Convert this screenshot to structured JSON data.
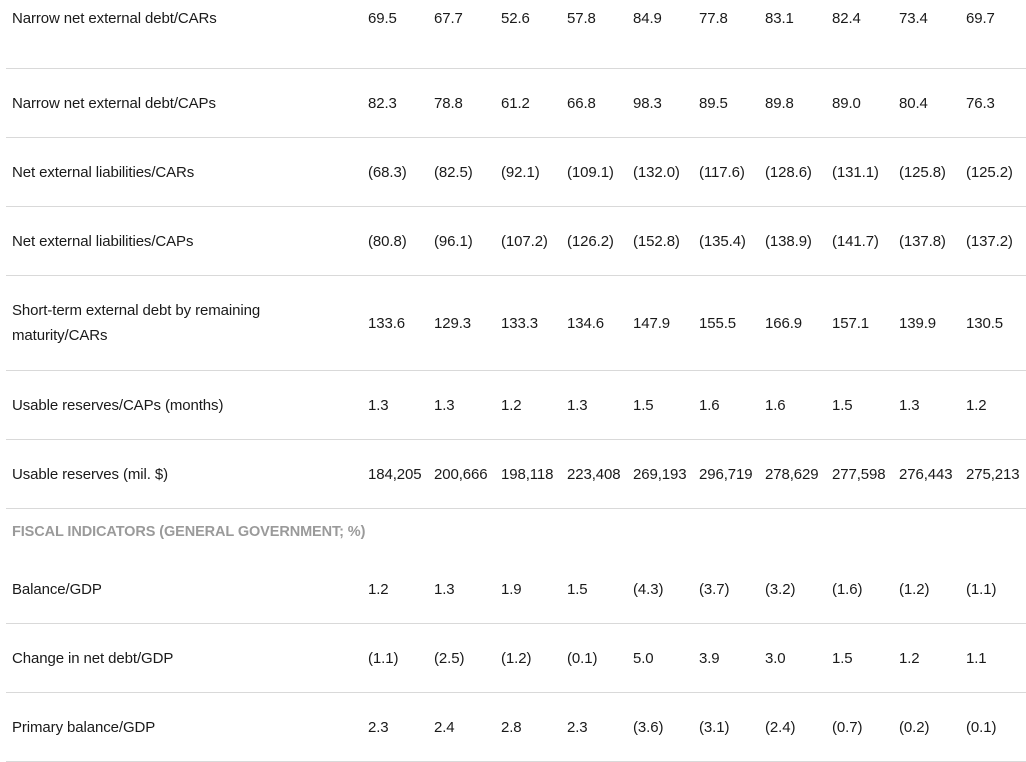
{
  "rows": [
    {
      "label": "Narrow net external debt/CARs",
      "values": [
        "69.5",
        "67.7",
        "52.6",
        "57.8",
        "84.9",
        "77.8",
        "83.1",
        "82.4",
        "73.4",
        "69.7"
      ]
    },
    {
      "label": "Narrow net external debt/CAPs",
      "values": [
        "82.3",
        "78.8",
        "61.2",
        "66.8",
        "98.3",
        "89.5",
        "89.8",
        "89.0",
        "80.4",
        "76.3"
      ]
    },
    {
      "label": "Net external liabilities/CARs",
      "values": [
        "(68.3)",
        "(82.5)",
        "(92.1)",
        "(109.1)",
        "(132.0)",
        "(117.6)",
        "(128.6)",
        "(131.1)",
        "(125.8)",
        "(125.2)"
      ]
    },
    {
      "label": "Net external liabilities/CAPs",
      "values": [
        "(80.8)",
        "(96.1)",
        "(107.2)",
        "(126.2)",
        "(152.8)",
        "(135.4)",
        "(138.9)",
        "(141.7)",
        "(137.8)",
        "(137.2)"
      ]
    },
    {
      "label": "Short-term external debt by remaining maturity/CARs",
      "values": [
        "133.6",
        "129.3",
        "133.3",
        "134.6",
        "147.9",
        "155.5",
        "166.9",
        "157.1",
        "139.9",
        "130.5"
      ]
    },
    {
      "label": "Usable reserves/CAPs (months)",
      "values": [
        "1.3",
        "1.3",
        "1.2",
        "1.3",
        "1.5",
        "1.6",
        "1.6",
        "1.5",
        "1.3",
        "1.2"
      ]
    },
    {
      "label": "Usable reserves (mil. $)",
      "values": [
        "184,205",
        "200,666",
        "198,118",
        "223,408",
        "269,193",
        "296,719",
        "278,629",
        "277,598",
        "276,443",
        "275,213"
      ]
    }
  ],
  "fiscal_section": {
    "title": "FISCAL INDICATORS (GENERAL GOVERNMENT; %)",
    "rows": [
      {
        "label": "Balance/GDP",
        "values": [
          "1.2",
          "1.3",
          "1.9",
          "1.5",
          "(4.3)",
          "(3.7)",
          "(3.2)",
          "(1.6)",
          "(1.2)",
          "(1.1)"
        ]
      },
      {
        "label": "Change in net debt/GDP",
        "values": [
          "(1.1)",
          "(2.5)",
          "(1.2)",
          "(0.1)",
          "5.0",
          "3.9",
          "3.0",
          "1.5",
          "1.2",
          "1.1"
        ]
      },
      {
        "label": "Primary balance/GDP",
        "values": [
          "2.3",
          "2.4",
          "2.8",
          "2.3",
          "(3.6)",
          "(3.1)",
          "(2.4)",
          "(0.7)",
          "(0.2)",
          "(0.1)"
        ]
      }
    ]
  }
}
